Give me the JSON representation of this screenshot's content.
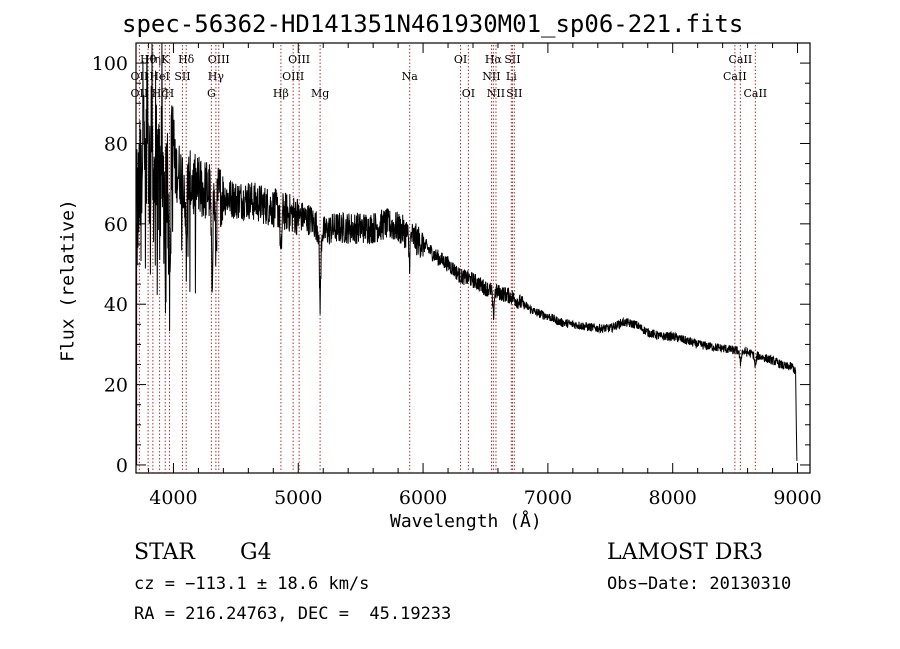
{
  "chart_data": {
    "type": "line",
    "title": "spec-56362-HD141351N461930M01_sp06-221.fits",
    "xlabel": "Wavelength (Å)",
    "ylabel": "Flux (relative)",
    "xlim": [
      3700,
      9100
    ],
    "ylim": [
      -2,
      105
    ],
    "xticks": [
      4000,
      5000,
      6000,
      7000,
      8000,
      9000
    ],
    "yticks": [
      0,
      20,
      40,
      60,
      80,
      100
    ],
    "x_minor_step": 200,
    "y_minor_step": 5,
    "continuum": [
      [
        3705,
        60
      ],
      [
        3750,
        75
      ],
      [
        3800,
        74
      ],
      [
        3850,
        72
      ],
      [
        3900,
        72
      ],
      [
        3950,
        71
      ],
      [
        4000,
        74
      ],
      [
        4100,
        71
      ],
      [
        4200,
        69
      ],
      [
        4300,
        68
      ],
      [
        4400,
        67
      ],
      [
        4500,
        66
      ],
      [
        4600,
        66
      ],
      [
        4700,
        65
      ],
      [
        4800,
        64
      ],
      [
        4900,
        63
      ],
      [
        5000,
        62
      ],
      [
        5100,
        61
      ],
      [
        5200,
        58
      ],
      [
        5300,
        59
      ],
      [
        5400,
        59
      ],
      [
        5500,
        59
      ],
      [
        5600,
        59
      ],
      [
        5700,
        60
      ],
      [
        5800,
        59
      ],
      [
        5900,
        57
      ],
      [
        6000,
        55
      ],
      [
        6100,
        52
      ],
      [
        6200,
        50
      ],
      [
        6300,
        47
      ],
      [
        6400,
        46
      ],
      [
        6500,
        44
      ],
      [
        6600,
        43
      ],
      [
        6700,
        42
      ],
      [
        6800,
        40
      ],
      [
        6900,
        38
      ],
      [
        7000,
        37
      ],
      [
        7100,
        35.5
      ],
      [
        7200,
        35
      ],
      [
        7300,
        34.5
      ],
      [
        7400,
        34
      ],
      [
        7500,
        34
      ],
      [
        7600,
        35.5
      ],
      [
        7700,
        35
      ],
      [
        7800,
        33
      ],
      [
        7900,
        32
      ],
      [
        8000,
        32
      ],
      [
        8100,
        31
      ],
      [
        8200,
        30
      ],
      [
        8300,
        29.5
      ],
      [
        8400,
        29
      ],
      [
        8500,
        28.5
      ],
      [
        8600,
        28
      ],
      [
        8700,
        27
      ],
      [
        8800,
        26
      ],
      [
        8900,
        24.5
      ],
      [
        8960,
        24.5
      ],
      [
        8985,
        23
      ]
    ],
    "absorption_features": [
      {
        "x": 3934,
        "depth": 30
      },
      {
        "x": 3969,
        "depth": 28
      },
      {
        "x": 4101,
        "depth": 16
      },
      {
        "x": 4308,
        "depth": 22
      },
      {
        "x": 4340,
        "depth": 14
      },
      {
        "x": 4861,
        "depth": 12
      },
      {
        "x": 5175,
        "depth": 18
      },
      {
        "x": 5890,
        "depth": 6
      },
      {
        "x": 6563,
        "depth": 6
      },
      {
        "x": 8542,
        "depth": 3
      },
      {
        "x": 8662,
        "depth": 3
      }
    ],
    "emission_features": [
      {
        "x": 3762,
        "height": 28
      },
      {
        "x": 3790,
        "height": 24
      },
      {
        "x": 3825,
        "height": 20
      },
      {
        "x": 3905,
        "height": 14
      },
      {
        "x": 4000,
        "height": 12
      }
    ],
    "line_markers": [
      {
        "label": "OII",
        "x": 3727,
        "row": 3
      },
      {
        "label": "Hθ",
        "x": 3797,
        "row": 1
      },
      {
        "label": "OII",
        "x": 3727,
        "row": 2
      },
      {
        "label": "Hη",
        "x": 3835,
        "row": 1
      },
      {
        "label": "HeI",
        "x": 3889,
        "row": 2
      },
      {
        "label": "Hζ",
        "x": 3889,
        "row": 3
      },
      {
        "label": "K",
        "x": 3934,
        "row": 1
      },
      {
        "label": "SII",
        "x": 4072,
        "row": 2
      },
      {
        "label": "H",
        "x": 3968,
        "row": 3
      },
      {
        "label": "Hδ",
        "x": 4102,
        "row": 1
      },
      {
        "label": "OIII",
        "x": 4363,
        "row": 1
      },
      {
        "label": "Hγ",
        "x": 4340,
        "row": 2
      },
      {
        "label": "G",
        "x": 4304,
        "row": 3
      },
      {
        "label": "Hβ",
        "x": 4861,
        "row": 3
      },
      {
        "label": "OIII",
        "x": 5007,
        "row": 1
      },
      {
        "label": "OIII",
        "x": 4959,
        "row": 2
      },
      {
        "label": "Mg",
        "x": 5175,
        "row": 3
      },
      {
        "label": "Na",
        "x": 5893,
        "row": 2
      },
      {
        "label": "OI",
        "x": 6300,
        "row": 1
      },
      {
        "label": "OI",
        "x": 6363,
        "row": 3
      },
      {
        "label": "Hα",
        "x": 6563,
        "row": 1
      },
      {
        "label": "SII",
        "x": 6716,
        "row": 1
      },
      {
        "label": "NII",
        "x": 6548,
        "row": 2
      },
      {
        "label": "Li",
        "x": 6707,
        "row": 2
      },
      {
        "label": "NII",
        "x": 6584,
        "row": 3
      },
      {
        "label": "SII",
        "x": 6731,
        "row": 3
      },
      {
        "label": "CaII",
        "x": 8542,
        "row": 1
      },
      {
        "label": "CaII",
        "x": 8498,
        "row": 2
      },
      {
        "label": "CaII",
        "x": 8662,
        "row": 3
      }
    ]
  },
  "info": {
    "object_class": "STAR",
    "subclass": "G4",
    "survey": "LAMOST DR3",
    "velocity": "cz = −113.1 ± 18.6 km/s",
    "obs_date": "Obs−Date: 20130310",
    "coords": "RA = 216.24763, DEC =  45.19233"
  },
  "colors": {
    "spectrum": "#000000",
    "axes": "#000000",
    "line_markers": "#b03030",
    "background": "#ffffff"
  }
}
